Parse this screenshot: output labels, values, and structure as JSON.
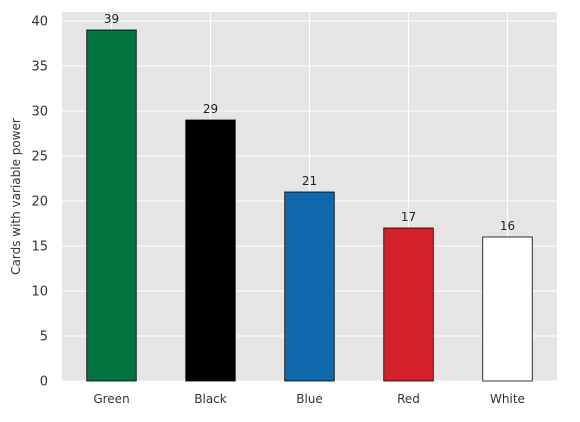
{
  "chart_data": {
    "type": "bar",
    "title": "",
    "xlabel": "",
    "ylabel": "Cards with variable power",
    "categories": [
      "Green",
      "Black",
      "Blue",
      "Red",
      "White"
    ],
    "values": [
      39,
      29,
      21,
      17,
      16
    ],
    "value_labels": [
      "39",
      "29",
      "21",
      "17",
      "16"
    ],
    "colors": [
      "#00733E",
      "#000000",
      "#0E68AB",
      "#D3202A",
      "#FFFFFF"
    ],
    "ylim": [
      0,
      41
    ],
    "yticks": [
      0,
      5,
      10,
      15,
      20,
      25,
      30,
      35,
      40
    ],
    "grid": true,
    "background": "#E5E5E5",
    "grid_color": "#FFFFFF",
    "bar_edge_color": "#000000"
  }
}
